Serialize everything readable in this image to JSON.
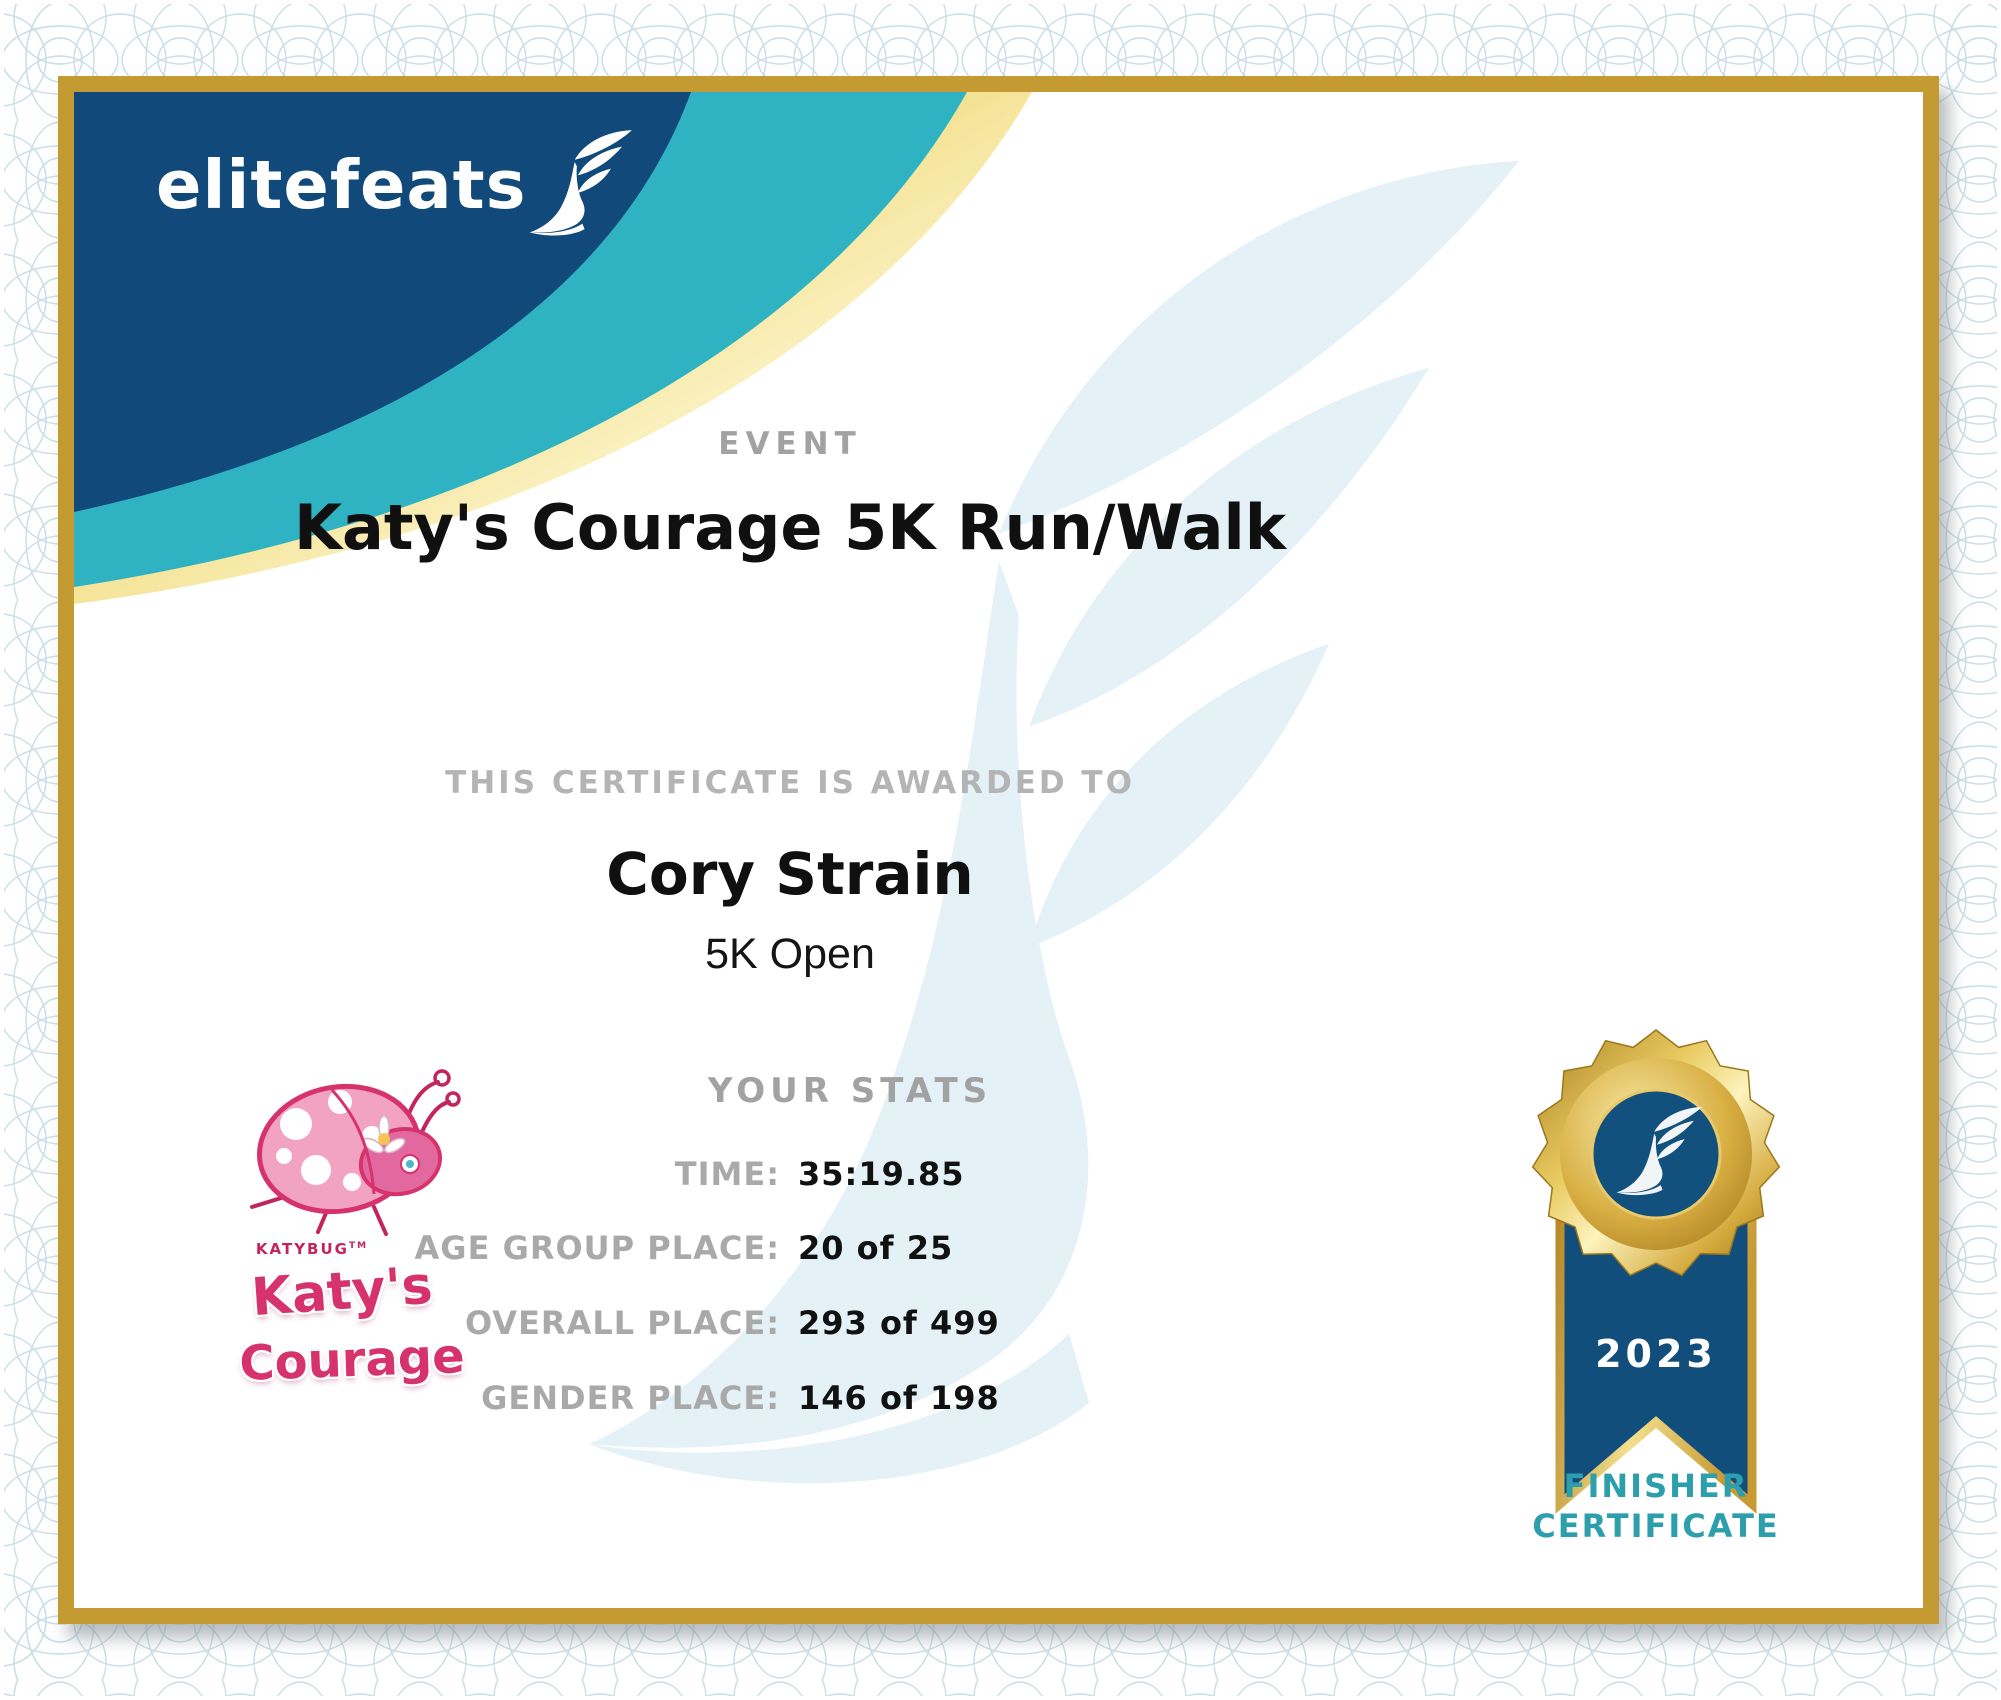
{
  "brand": {
    "name": "elitefeats"
  },
  "event": {
    "label": "EVENT",
    "title": "Katy's Courage 5K Run/Walk"
  },
  "award": {
    "heading": "THIS CERTIFICATE IS AWARDED TO",
    "recipient": "Cory Strain",
    "division": "5K Open"
  },
  "stats": {
    "heading": "YOUR STATS",
    "items": [
      {
        "label": "TIME:",
        "value": "35:19.85"
      },
      {
        "label": "AGE GROUP PLACE:",
        "value": "20 of 25"
      },
      {
        "label": "OVERALL PLACE:",
        "value": "293 of 499"
      },
      {
        "label": "GENDER PLACE:",
        "value": "146 of 198"
      }
    ]
  },
  "sponsor": {
    "brand_small": "KATYBUG",
    "trademark": "TM",
    "line1": "Katy's",
    "line2": "Courage"
  },
  "medal": {
    "year": "2023",
    "line1": "FINISHER",
    "line2": "CERTIFICATE"
  },
  "colors": {
    "frame_gold": "#c49a33",
    "dark_blue": "#11497a",
    "teal": "#2fb3c2",
    "finisher_teal": "#2d9fac",
    "pink": "#d6336c",
    "label_gray": "#a8a8a8",
    "text_black": "#111111",
    "watermark_blue": "#e4f1f7",
    "guilloche_blue": "#c8dee6"
  }
}
